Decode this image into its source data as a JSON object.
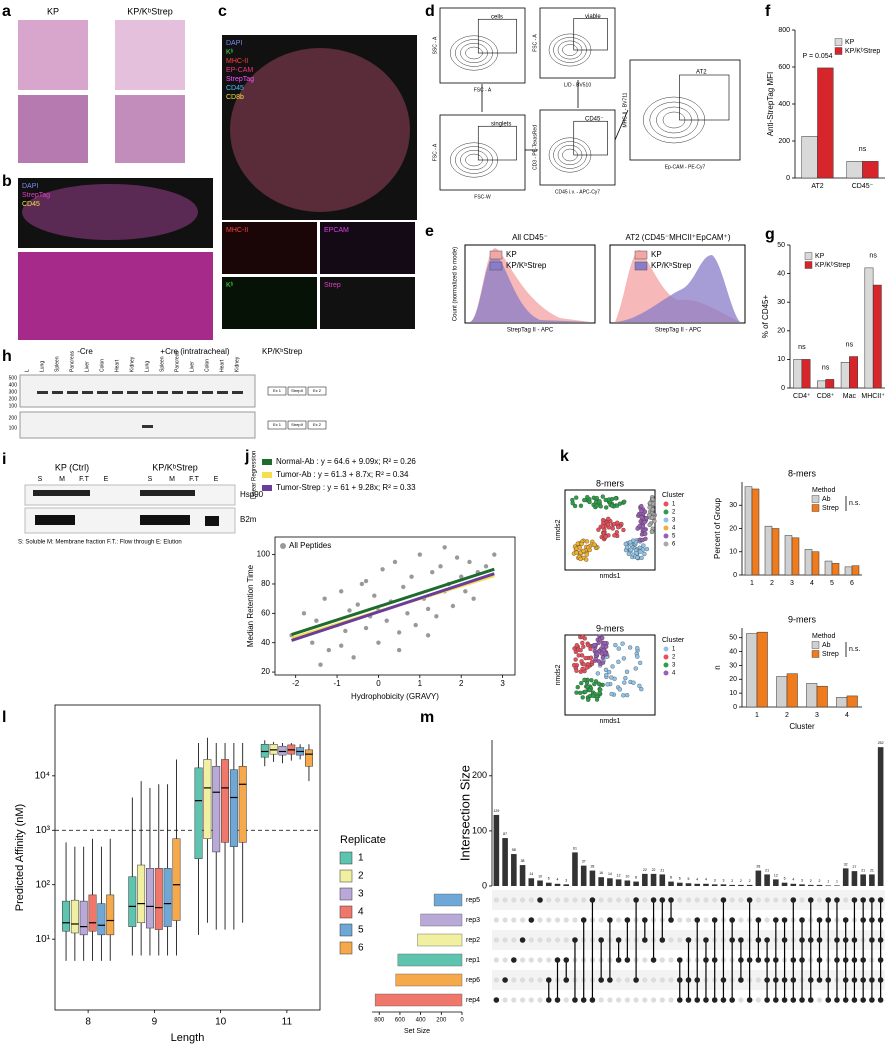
{
  "panel_letters": [
    "a",
    "b",
    "c",
    "d",
    "e",
    "f",
    "g",
    "h",
    "i",
    "j",
    "k",
    "l",
    "m"
  ],
  "panel_a": {
    "headers": [
      "KP",
      "KP/KᵇStrep"
    ]
  },
  "panel_b": {
    "stains": [
      "DAPI",
      "StrepTag",
      "CD45"
    ]
  },
  "panel_c": {
    "stains": [
      "DAPI",
      "Kᵇ",
      "MHC-II",
      "EP-CAM",
      "StrepTag",
      "CD45",
      "CD8b"
    ],
    "subpanels": [
      "MHC-II",
      "EPCAM",
      "Kᵇ",
      "Strep"
    ]
  },
  "panel_d": {
    "plots": [
      {
        "gate": "cells",
        "xlabel": "FSC - A",
        "ylabel": "SSC - A"
      },
      {
        "gate": "singlets",
        "xlabel": "FSC-W",
        "ylabel": "FSC - A"
      },
      {
        "gate": "viable",
        "xlabel": "L/D - BV510",
        "ylabel": "FSC - A"
      },
      {
        "gate": "CD45⁻",
        "xlabel": "CD45 i.v. - APC-Cy7",
        "ylabel": "CD3 - PE-TexasRed"
      },
      {
        "gate": "AT2",
        "xlabel": "Ep-CAM - PE-Cy7",
        "ylabel": "MHC-II - BV711"
      }
    ]
  },
  "panel_e": {
    "titles": [
      "All CD45⁻",
      "AT2 (CD45⁻MHCII⁺EpCAM⁺)"
    ],
    "legend": [
      "KP",
      "KP/KᵇStrep"
    ],
    "ylabel": "Count (normalized to mode)",
    "xlabel": "StrepTag II - APC"
  },
  "panel_h": {
    "groups": [
      "-Cre",
      "+Cre (intratracheal)"
    ],
    "genotype": "KP/KᵇStrep",
    "lanes": [
      "L",
      "Lung",
      "Spleen",
      "Pancreas",
      "Liver",
      "Colon",
      "Heart",
      "Kidney",
      "Lung",
      "Spleen",
      "Pancreas",
      "Liver",
      "Colon",
      "Heart",
      "Kidney"
    ],
    "ladder_top": [
      "500",
      "400",
      "300",
      "200",
      "100"
    ],
    "ladder_bottom": [
      "200",
      "100"
    ],
    "construct": [
      "Ex 1",
      "StrepII",
      "Ex 2"
    ]
  },
  "panel_i": {
    "groups": [
      "KP (Ctrl)",
      "KP/KᵇStrep"
    ],
    "fractions": [
      "S",
      "M",
      "F.T",
      "E"
    ],
    "proteins": [
      "Hsp90",
      "B2m"
    ],
    "footnote": "S: Soluble   M: Membrane fraction   F.T.: Flow through   E: Elution"
  },
  "panel_k": {
    "titles": [
      "8-mers",
      "9-mers"
    ],
    "legend_title": "Cluster",
    "xlabel": "nmds1",
    "ylabel": "nmds2",
    "clusters_8": {
      "names": [
        "1",
        "2",
        "3",
        "4",
        "5",
        "6"
      ],
      "colors": [
        "#e8505b",
        "#2e9e48",
        "#8fc3e8",
        "#f0b030",
        "#9b5fb5",
        "#aaaaaa"
      ]
    },
    "clusters_9": {
      "names": [
        "1",
        "2",
        "3",
        "4"
      ],
      "colors": [
        "#8fc3e8",
        "#e8505b",
        "#2e9e48",
        "#9b5fb5"
      ]
    }
  },
  "chart_data": [
    {
      "type": "bar",
      "ylabel": "Anti-StrepTag MFI",
      "categories": [
        "AT2",
        "CD45⁻"
      ],
      "series": [
        {
          "name": "KP",
          "color": "#d9d9d9",
          "values": [
            225,
            90
          ]
        },
        {
          "name": "KP/KᵇStrep",
          "color": "#d7262b",
          "values": [
            595,
            90
          ]
        }
      ],
      "ylim": [
        0,
        800
      ],
      "yticks": [
        0,
        200,
        400,
        600,
        800
      ],
      "annotations": [
        "P = 0.054",
        "ns"
      ]
    },
    {
      "type": "bar",
      "ylabel": "% of CD45+",
      "categories": [
        "CD4⁺",
        "CD8⁺",
        "Mac",
        "MHCII⁺"
      ],
      "series": [
        {
          "name": "KP",
          "color": "#d9d9d9",
          "values": [
            10,
            2.5,
            9,
            42
          ]
        },
        {
          "name": "KP/KᵇStrep",
          "color": "#d7262b",
          "values": [
            10,
            3,
            11,
            36
          ]
        }
      ],
      "ylim": [
        0,
        50
      ],
      "yticks": [
        0,
        10,
        20,
        30,
        40,
        50
      ],
      "annotations": [
        "ns",
        "ns",
        "ns",
        "ns"
      ]
    },
    {
      "type": "scatter",
      "xlabel": "Hydrophobicity (GRAVY)",
      "ylabel": "Median Retention Time",
      "legend_title": "Linear Regression",
      "points_name": "All Peptides",
      "point_color": "#999999",
      "x": [
        -2.1,
        -1.8,
        -1.6,
        -1.5,
        -1.3,
        -1.2,
        -1.0,
        -0.9,
        -0.8,
        -0.7,
        -0.6,
        -0.5,
        -0.4,
        -0.3,
        -0.2,
        -0.1,
        0.0,
        0.1,
        0.2,
        0.3,
        0.4,
        0.5,
        0.6,
        0.7,
        0.8,
        0.9,
        1.0,
        1.1,
        1.2,
        1.3,
        1.4,
        1.5,
        1.6,
        1.7,
        1.8,
        1.9,
        2.0,
        2.1,
        2.2,
        2.4,
        2.6,
        2.8,
        -1.4,
        -0.3,
        0.5,
        1.2,
        2.3,
        0.0,
        -0.9,
        1.6
      ],
      "y": [
        45,
        60,
        40,
        55,
        70,
        35,
        52,
        75,
        48,
        62,
        30,
        66,
        80,
        50,
        58,
        72,
        40,
        90,
        55,
        68,
        95,
        47,
        78,
        60,
        85,
        52,
        100,
        70,
        63,
        88,
        58,
        92,
        75,
        80,
        65,
        98,
        85,
        75,
        95,
        88,
        92,
        100,
        25,
        82,
        35,
        45,
        70,
        62,
        38,
        105
      ],
      "fits": [
        {
          "name": "Normal-Ab : y = 64.6 + 9.09x; R² = 0.26",
          "color": "#1e6b2e",
          "intercept": 64.6,
          "slope": 9.09
        },
        {
          "name": "Tumor-Ab : y = 61.3 + 8.7x; R² = 0.34",
          "color": "#f4e04d",
          "intercept": 61.3,
          "slope": 8.7
        },
        {
          "name": "Tumor-Strep : y = 61 + 9.28x; R² = 0.33",
          "color": "#6a3d9a",
          "intercept": 61,
          "slope": 9.28
        }
      ],
      "xlim": [
        -2.5,
        3.3
      ],
      "xticks": [
        -2,
        -1,
        0,
        1,
        2,
        3
      ],
      "ylim": [
        18,
        112
      ],
      "yticks": [
        20,
        40,
        60,
        80,
        100
      ]
    },
    {
      "type": "bar",
      "title": "8-mers",
      "ylabel": "Percent of Group",
      "legend_title": "Method",
      "legend_note": "n.s.",
      "categories": [
        "1",
        "2",
        "3",
        "4",
        "5",
        "6"
      ],
      "series": [
        {
          "name": "Ab",
          "color": "#d0d0d0",
          "values": [
            38,
            21,
            17,
            11,
            6,
            3.5
          ]
        },
        {
          "name": "Strep",
          "color": "#f07b1c",
          "values": [
            37,
            20,
            16,
            10,
            5,
            4
          ]
        }
      ],
      "ylim": [
        0,
        40
      ],
      "yticks": [
        0,
        10,
        20,
        30
      ]
    },
    {
      "type": "bar",
      "title": "9-mers",
      "ylabel": "n",
      "xlabel": "Cluster",
      "legend_title": "Method",
      "legend_note": "n.s.",
      "categories": [
        "1",
        "2",
        "3",
        "4"
      ],
      "series": [
        {
          "name": "Ab",
          "color": "#d0d0d0",
          "values": [
            53,
            22,
            17,
            7
          ]
        },
        {
          "name": "Strep",
          "color": "#f07b1c",
          "values": [
            54,
            24,
            15,
            8
          ]
        }
      ],
      "ylim": [
        0,
        57
      ],
      "yticks": [
        0,
        10,
        20,
        30,
        40,
        50
      ]
    },
    {
      "type": "box",
      "xlabel": "Length",
      "ylabel": "Predicted Affinity (nM)",
      "legend_title": "Replicate",
      "log_y": true,
      "reference_line": 1000,
      "categories": [
        "8",
        "9",
        "10",
        "11"
      ],
      "series": [
        {
          "name": "1",
          "color": "#5ec4b0",
          "values": [
            [
              4,
              14,
              20,
              50,
              600
            ],
            [
              5,
              17,
              40,
              140,
              4000
            ],
            [
              12,
              300,
              3500,
              14000,
              40000
            ],
            [
              15000,
              22000,
              28000,
              38000,
              45000
            ]
          ]
        },
        {
          "name": "2",
          "color": "#f1f0a0",
          "values": [
            [
              4,
              13,
              19,
              52,
              500
            ],
            [
              5,
              20,
              45,
              230,
              8000
            ],
            [
              20,
              700,
              6000,
              20000,
              50000
            ],
            [
              18000,
              25000,
              30000,
              38000,
              42000
            ]
          ]
        },
        {
          "name": "3",
          "color": "#b8a9d9",
          "values": [
            [
              4,
              12,
              17,
              50,
              500
            ],
            [
              5,
              16,
              40,
              200,
              6000
            ],
            [
              15,
              400,
              5000,
              15000,
              40000
            ],
            [
              17000,
              24000,
              28000,
              35000,
              40000
            ]
          ]
        },
        {
          "name": "4",
          "color": "#f0776b",
          "values": [
            [
              4,
              14,
              20,
              65,
              700
            ],
            [
              5,
              15,
              38,
              200,
              7000
            ],
            [
              15,
              600,
              6000,
              20000,
              40000
            ],
            [
              19000,
              25000,
              30000,
              37000,
              40000
            ]
          ]
        },
        {
          "name": "5",
          "color": "#6fa8d6",
          "values": [
            [
              4,
              12,
              18,
              45,
              500
            ],
            [
              5,
              17,
              45,
              200,
              7000
            ],
            [
              15,
              500,
              4000,
              13000,
              40000
            ],
            [
              20000,
              24000,
              28000,
              33000,
              38000
            ]
          ]
        },
        {
          "name": "6",
          "color": "#f5a94a",
          "values": [
            [
              4,
              12,
              22,
              65,
              700
            ],
            [
              5,
              22,
              100,
              700,
              20000
            ],
            [
              20,
              600,
              7000,
              15000,
              40000
            ],
            [
              8000,
              15000,
              25000,
              30000,
              38000
            ]
          ]
        }
      ],
      "ylim": [
        0.5,
        200000
      ],
      "yticks": [
        {
          "value": 10,
          "label": "10¹"
        },
        {
          "value": 100,
          "label": "10²"
        },
        {
          "value": 1000,
          "label": "10³"
        },
        {
          "value": 10000,
          "label": "10⁴"
        }
      ]
    },
    {
      "type": "upset",
      "ylabel": "Intersection Size",
      "xlabel": "Set Size",
      "values": [
        129,
        87,
        58,
        38,
        14,
        10,
        6,
        4,
        3,
        61,
        37,
        28,
        16,
        14,
        12,
        10,
        8,
        22,
        22,
        21,
        8,
        6,
        5,
        4,
        4,
        3,
        3,
        2,
        2,
        2,
        28,
        21,
        12,
        6,
        4,
        3,
        2,
        2,
        1,
        1,
        32,
        27,
        21,
        21,
        252
      ],
      "members": [
        [
          5
        ],
        [
          4
        ],
        [
          3
        ],
        [
          2
        ],
        [
          1
        ],
        [
          0
        ],
        [
          4,
          5
        ],
        [
          3,
          5
        ],
        [
          3,
          4
        ],
        [
          2,
          5
        ],
        [
          1,
          5
        ],
        [
          0,
          5
        ],
        [
          2,
          4
        ],
        [
          1,
          4
        ],
        [
          2,
          3
        ],
        [
          1,
          3
        ],
        [
          0,
          4
        ],
        [
          1,
          2
        ],
        [
          0,
          3
        ],
        [
          0,
          2
        ],
        [
          0,
          1
        ],
        [
          3,
          4,
          5
        ],
        [
          2,
          4,
          5
        ],
        [
          1,
          4,
          5
        ],
        [
          2,
          3,
          5
        ],
        [
          1,
          3,
          5
        ],
        [
          0,
          4,
          5
        ],
        [
          1,
          2,
          5
        ],
        [
          2,
          3,
          4
        ],
        [
          0,
          3,
          5
        ],
        [
          1,
          2,
          3
        ],
        [
          2,
          3,
          4,
          5
        ],
        [
          1,
          3,
          4,
          5
        ],
        [
          1,
          2,
          4,
          5
        ],
        [
          0,
          3,
          4,
          5
        ],
        [
          1,
          2,
          3,
          5
        ],
        [
          0,
          2,
          4,
          5
        ],
        [
          1,
          2,
          3,
          4
        ],
        [
          0,
          1,
          4,
          5
        ],
        [
          0,
          2,
          3,
          5
        ],
        [
          1,
          2,
          3,
          4,
          5
        ],
        [
          0,
          2,
          3,
          4,
          5
        ],
        [
          0,
          1,
          3,
          4,
          5
        ],
        [
          0,
          1,
          2,
          4,
          5
        ],
        [
          0,
          1,
          2,
          3,
          4,
          5
        ]
      ],
      "sets": [
        "rep5",
        "rep3",
        "rep2",
        "rep1",
        "rep6",
        "rep4"
      ],
      "set_sizes": [
        270,
        400,
        430,
        620,
        640,
        840
      ],
      "set_colors": [
        "#6fa8d6",
        "#b8a9d9",
        "#f1f0a0",
        "#5ec4b0",
        "#f5a94a",
        "#f0776b"
      ],
      "ylim": [
        0,
        265
      ],
      "yticks": [
        0,
        100,
        200
      ],
      "xlim": [
        0,
        870
      ],
      "xticks": [
        800,
        600,
        400,
        200,
        0
      ]
    }
  ]
}
